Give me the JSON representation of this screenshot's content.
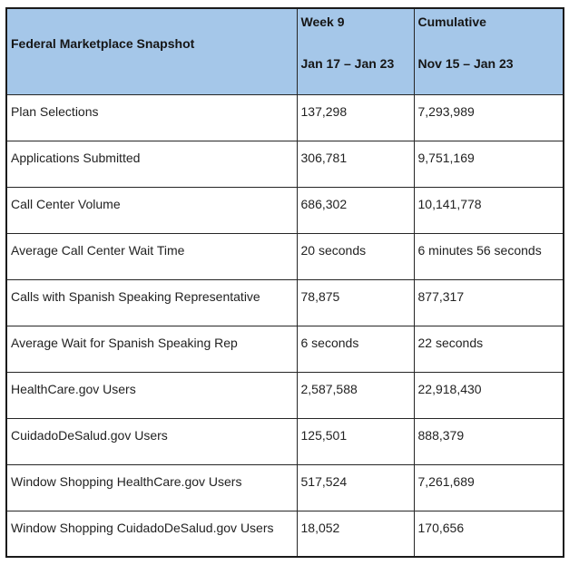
{
  "colors": {
    "header_bg": "#A5C7E9",
    "border": "#262626",
    "text": "#222222"
  },
  "table": {
    "header": {
      "label": "Federal Marketplace Snapshot",
      "week_title": "Week 9",
      "week_range": "Jan 17 – Jan 23",
      "cumulative_title": "Cumulative",
      "cumulative_range": "Nov 15 – Jan 23"
    },
    "rows": [
      {
        "label": "Plan Selections",
        "week": "137,298",
        "cumulative": "7,293,989"
      },
      {
        "label": "Applications Submitted",
        "week": "306,781",
        "cumulative": "9,751,169"
      },
      {
        "label": "Call Center Volume",
        "week": "686,302",
        "cumulative": "10,141,778"
      },
      {
        "label": "Average Call Center Wait Time",
        "week": "20 seconds",
        "cumulative": "6 minutes 56 seconds"
      },
      {
        "label": "Calls with Spanish Speaking Representative",
        "week": "78,875",
        "cumulative": "877,317"
      },
      {
        "label": "Average Wait for Spanish Speaking Rep",
        "week": "6 seconds",
        "cumulative": "22 seconds"
      },
      {
        "label": "HealthCare.gov Users",
        "week": "2,587,588",
        "cumulative": "22,918,430"
      },
      {
        "label": "CuidadoDeSalud.gov Users",
        "week": "125,501",
        "cumulative": "888,379"
      },
      {
        "label": "Window Shopping HealthCare.gov Users",
        "week": "517,524",
        "cumulative": "7,261,689"
      },
      {
        "label": "Window Shopping CuidadoDeSalud.gov Users",
        "week": "18,052",
        "cumulative": "170,656"
      }
    ]
  }
}
